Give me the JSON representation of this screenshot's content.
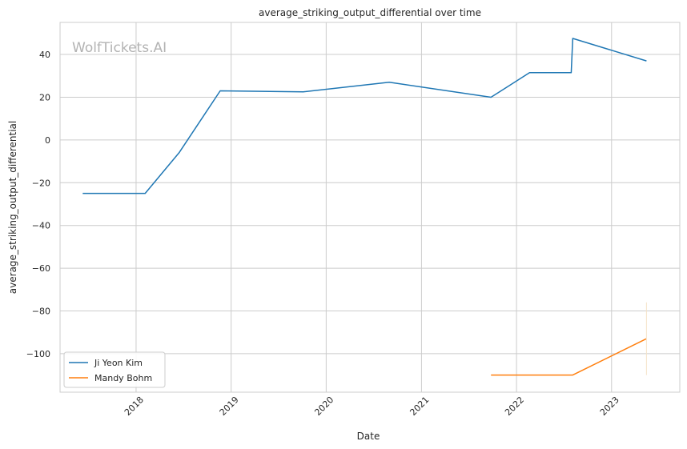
{
  "watermark": "WolfTickets.AI",
  "chart_data": {
    "type": "line",
    "title": "average_striking_output_differential over time",
    "xlabel": "Date",
    "ylabel": "average_striking_output_differential",
    "xlim": [
      "2017-03-15",
      "2023-09-20"
    ],
    "ylim": [
      -118,
      55
    ],
    "x_ticks": [
      "2018",
      "2019",
      "2020",
      "2021",
      "2022",
      "2023"
    ],
    "y_ticks": [
      40,
      20,
      0,
      -20,
      -40,
      -60,
      -80,
      -100
    ],
    "grid": true,
    "legend": "lower-left",
    "series": [
      {
        "name": "Ji Yeon Kim",
        "color": "#1f77b4",
        "points": [
          {
            "x": "2017-06-10",
            "y": -25
          },
          {
            "x": "2018-02-05",
            "y": -25
          },
          {
            "x": "2018-06-15",
            "y": -6
          },
          {
            "x": "2018-11-20",
            "y": 23
          },
          {
            "x": "2019-10-05",
            "y": 22.5
          },
          {
            "x": "2020-08-30",
            "y": 27
          },
          {
            "x": "2021-09-25",
            "y": 20
          },
          {
            "x": "2022-02-20",
            "y": 31.5
          },
          {
            "x": "2022-07-30",
            "y": 31.5
          },
          {
            "x": "2022-08-05",
            "y": 47.5
          },
          {
            "x": "2023-05-15",
            "y": 37
          }
        ]
      },
      {
        "name": "Mandy Bohm",
        "color": "#ff7f0e",
        "points": [
          {
            "x": "2021-09-25",
            "y": -110
          },
          {
            "x": "2022-08-05",
            "y": -110
          },
          {
            "x": "2023-05-15",
            "y": -93
          }
        ]
      }
    ]
  }
}
